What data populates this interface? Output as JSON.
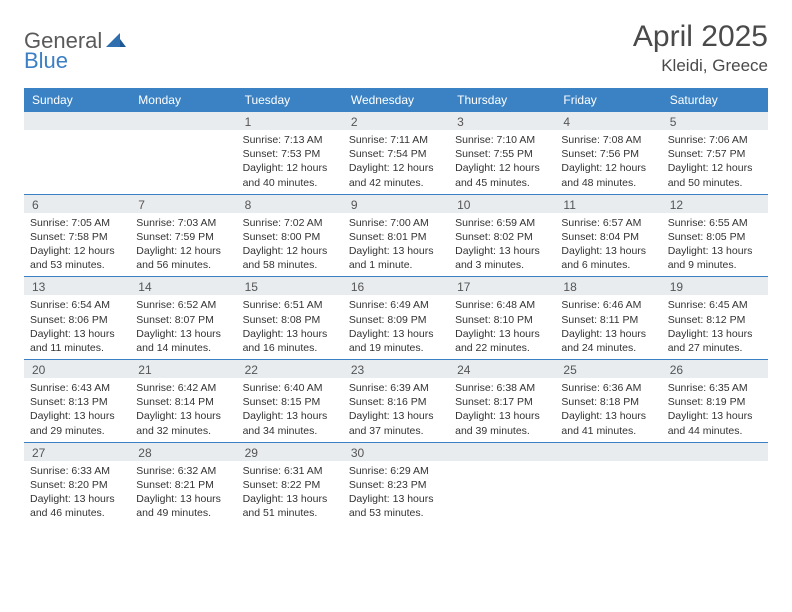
{
  "colors": {
    "header_bg": "#3b82c4",
    "daynum_bg": "#e8ecef",
    "separator": "#3b7fc4",
    "text": "#333333",
    "logo_gray": "#5a5a5a",
    "logo_blue": "#3b7fc4"
  },
  "logo": {
    "part1": "General",
    "part2": "Blue"
  },
  "title": {
    "month_year": "April 2025",
    "location": "Kleidi, Greece"
  },
  "weekdays": [
    "Sunday",
    "Monday",
    "Tuesday",
    "Wednesday",
    "Thursday",
    "Friday",
    "Saturday"
  ],
  "weeks": [
    [
      null,
      null,
      {
        "n": "1",
        "sr": "Sunrise: 7:13 AM",
        "ss": "Sunset: 7:53 PM",
        "d1": "Daylight: 12 hours",
        "d2": "and 40 minutes."
      },
      {
        "n": "2",
        "sr": "Sunrise: 7:11 AM",
        "ss": "Sunset: 7:54 PM",
        "d1": "Daylight: 12 hours",
        "d2": "and 42 minutes."
      },
      {
        "n": "3",
        "sr": "Sunrise: 7:10 AM",
        "ss": "Sunset: 7:55 PM",
        "d1": "Daylight: 12 hours",
        "d2": "and 45 minutes."
      },
      {
        "n": "4",
        "sr": "Sunrise: 7:08 AM",
        "ss": "Sunset: 7:56 PM",
        "d1": "Daylight: 12 hours",
        "d2": "and 48 minutes."
      },
      {
        "n": "5",
        "sr": "Sunrise: 7:06 AM",
        "ss": "Sunset: 7:57 PM",
        "d1": "Daylight: 12 hours",
        "d2": "and 50 minutes."
      }
    ],
    [
      {
        "n": "6",
        "sr": "Sunrise: 7:05 AM",
        "ss": "Sunset: 7:58 PM",
        "d1": "Daylight: 12 hours",
        "d2": "and 53 minutes."
      },
      {
        "n": "7",
        "sr": "Sunrise: 7:03 AM",
        "ss": "Sunset: 7:59 PM",
        "d1": "Daylight: 12 hours",
        "d2": "and 56 minutes."
      },
      {
        "n": "8",
        "sr": "Sunrise: 7:02 AM",
        "ss": "Sunset: 8:00 PM",
        "d1": "Daylight: 12 hours",
        "d2": "and 58 minutes."
      },
      {
        "n": "9",
        "sr": "Sunrise: 7:00 AM",
        "ss": "Sunset: 8:01 PM",
        "d1": "Daylight: 13 hours",
        "d2": "and 1 minute."
      },
      {
        "n": "10",
        "sr": "Sunrise: 6:59 AM",
        "ss": "Sunset: 8:02 PM",
        "d1": "Daylight: 13 hours",
        "d2": "and 3 minutes."
      },
      {
        "n": "11",
        "sr": "Sunrise: 6:57 AM",
        "ss": "Sunset: 8:04 PM",
        "d1": "Daylight: 13 hours",
        "d2": "and 6 minutes."
      },
      {
        "n": "12",
        "sr": "Sunrise: 6:55 AM",
        "ss": "Sunset: 8:05 PM",
        "d1": "Daylight: 13 hours",
        "d2": "and 9 minutes."
      }
    ],
    [
      {
        "n": "13",
        "sr": "Sunrise: 6:54 AM",
        "ss": "Sunset: 8:06 PM",
        "d1": "Daylight: 13 hours",
        "d2": "and 11 minutes."
      },
      {
        "n": "14",
        "sr": "Sunrise: 6:52 AM",
        "ss": "Sunset: 8:07 PM",
        "d1": "Daylight: 13 hours",
        "d2": "and 14 minutes."
      },
      {
        "n": "15",
        "sr": "Sunrise: 6:51 AM",
        "ss": "Sunset: 8:08 PM",
        "d1": "Daylight: 13 hours",
        "d2": "and 16 minutes."
      },
      {
        "n": "16",
        "sr": "Sunrise: 6:49 AM",
        "ss": "Sunset: 8:09 PM",
        "d1": "Daylight: 13 hours",
        "d2": "and 19 minutes."
      },
      {
        "n": "17",
        "sr": "Sunrise: 6:48 AM",
        "ss": "Sunset: 8:10 PM",
        "d1": "Daylight: 13 hours",
        "d2": "and 22 minutes."
      },
      {
        "n": "18",
        "sr": "Sunrise: 6:46 AM",
        "ss": "Sunset: 8:11 PM",
        "d1": "Daylight: 13 hours",
        "d2": "and 24 minutes."
      },
      {
        "n": "19",
        "sr": "Sunrise: 6:45 AM",
        "ss": "Sunset: 8:12 PM",
        "d1": "Daylight: 13 hours",
        "d2": "and 27 minutes."
      }
    ],
    [
      {
        "n": "20",
        "sr": "Sunrise: 6:43 AM",
        "ss": "Sunset: 8:13 PM",
        "d1": "Daylight: 13 hours",
        "d2": "and 29 minutes."
      },
      {
        "n": "21",
        "sr": "Sunrise: 6:42 AM",
        "ss": "Sunset: 8:14 PM",
        "d1": "Daylight: 13 hours",
        "d2": "and 32 minutes."
      },
      {
        "n": "22",
        "sr": "Sunrise: 6:40 AM",
        "ss": "Sunset: 8:15 PM",
        "d1": "Daylight: 13 hours",
        "d2": "and 34 minutes."
      },
      {
        "n": "23",
        "sr": "Sunrise: 6:39 AM",
        "ss": "Sunset: 8:16 PM",
        "d1": "Daylight: 13 hours",
        "d2": "and 37 minutes."
      },
      {
        "n": "24",
        "sr": "Sunrise: 6:38 AM",
        "ss": "Sunset: 8:17 PM",
        "d1": "Daylight: 13 hours",
        "d2": "and 39 minutes."
      },
      {
        "n": "25",
        "sr": "Sunrise: 6:36 AM",
        "ss": "Sunset: 8:18 PM",
        "d1": "Daylight: 13 hours",
        "d2": "and 41 minutes."
      },
      {
        "n": "26",
        "sr": "Sunrise: 6:35 AM",
        "ss": "Sunset: 8:19 PM",
        "d1": "Daylight: 13 hours",
        "d2": "and 44 minutes."
      }
    ],
    [
      {
        "n": "27",
        "sr": "Sunrise: 6:33 AM",
        "ss": "Sunset: 8:20 PM",
        "d1": "Daylight: 13 hours",
        "d2": "and 46 minutes."
      },
      {
        "n": "28",
        "sr": "Sunrise: 6:32 AM",
        "ss": "Sunset: 8:21 PM",
        "d1": "Daylight: 13 hours",
        "d2": "and 49 minutes."
      },
      {
        "n": "29",
        "sr": "Sunrise: 6:31 AM",
        "ss": "Sunset: 8:22 PM",
        "d1": "Daylight: 13 hours",
        "d2": "and 51 minutes."
      },
      {
        "n": "30",
        "sr": "Sunrise: 6:29 AM",
        "ss": "Sunset: 8:23 PM",
        "d1": "Daylight: 13 hours",
        "d2": "and 53 minutes."
      },
      null,
      null,
      null
    ]
  ]
}
